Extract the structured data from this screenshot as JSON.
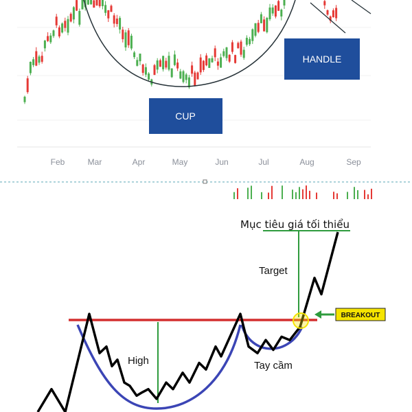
{
  "chart_data": [
    {
      "type": "candlestick",
      "x_ticks": [
        "Feb",
        "Mar",
        "Apr",
        "May",
        "Jun",
        "Jul",
        "Aug",
        "Sep"
      ],
      "annotations": {
        "cup": "CUP",
        "handle": "HANDLE"
      },
      "colors": {
        "up": "#4caf50",
        "down": "#e53935",
        "arc": "#263238",
        "label_box": "#1f4e9c"
      }
    },
    {
      "type": "line",
      "annotations": {
        "title": "Mục tiêu giá tối thiểu",
        "target": "Target",
        "high": "High",
        "handle": "Tay cầm",
        "breakout": "BREAKOUT"
      },
      "series": [
        {
          "values": [
            0,
            35,
            0,
            150,
            90,
            100,
            70,
            80,
            45,
            40,
            25,
            30,
            35,
            20,
            45,
            35,
            60,
            45,
            75,
            65,
            100,
            85,
            150,
            100,
            90,
            110,
            95,
            115,
            110,
            130,
            205,
            180,
            275
          ]
        }
      ],
      "resistance_level": 150,
      "colors": {
        "price": "#000000",
        "cup_curve": "#3b45b5",
        "resistance": "#d32f2f",
        "guides": "#2e9b3d",
        "breakout_label": "#f5e400"
      }
    }
  ]
}
